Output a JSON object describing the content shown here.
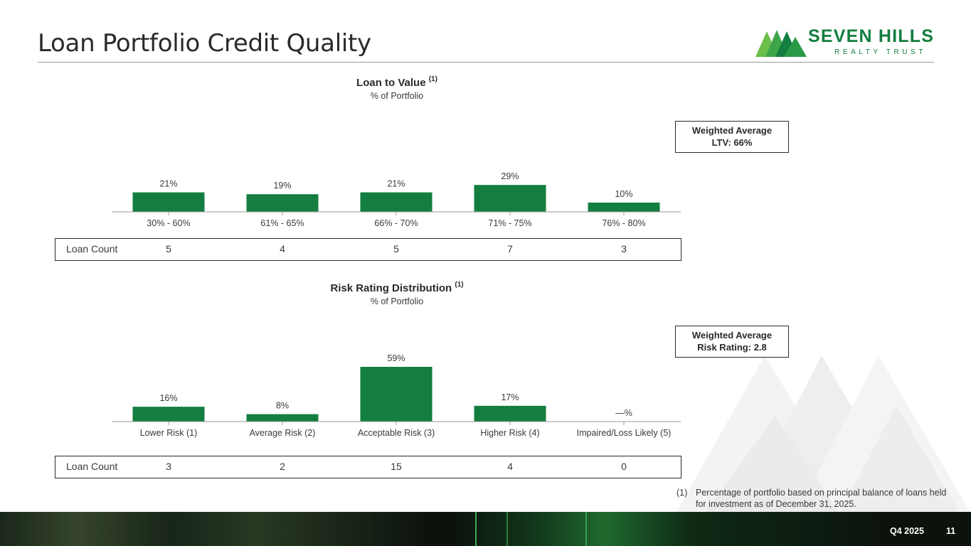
{
  "page_title": "Loan Portfolio Credit Quality",
  "logo": {
    "name": "SEVEN HILLS",
    "subtitle": "REALTY TRUST"
  },
  "colors": {
    "bar": "#137e3f",
    "brand": "#137e3f",
    "text": "#3a3a3a"
  },
  "ltv_section": {
    "title": "Loan to Value",
    "footnote_ref": "(1)",
    "subtitle": "% of Portfolio"
  },
  "ltv_callout": {
    "line1": "Weighted Average",
    "line2": "LTV: 66%"
  },
  "ltv_counts": {
    "label": "Loan Count",
    "values": [
      "5",
      "4",
      "5",
      "7",
      "3"
    ]
  },
  "risk_section": {
    "title": "Risk Rating Distribution",
    "footnote_ref": "(1)",
    "subtitle": "% of Portfolio"
  },
  "risk_callout": {
    "line1": "Weighted Average",
    "line2": "Risk Rating: 2.8"
  },
  "risk_counts": {
    "label": "Loan Count",
    "values": [
      "3",
      "2",
      "15",
      "4",
      "0"
    ]
  },
  "chart_data": [
    {
      "type": "bar",
      "title": "Loan to Value",
      "subtitle": "% of Portfolio",
      "categories": [
        "30% - 60%",
        "61% - 65%",
        "66% - 70%",
        "71% - 75%",
        "76% - 80%"
      ],
      "values": [
        21,
        19,
        21,
        29,
        10
      ],
      "data_labels": [
        "21%",
        "19%",
        "21%",
        "29%",
        "10%"
      ],
      "ylim": [
        0,
        59
      ],
      "grid": false
    },
    {
      "type": "bar",
      "title": "Risk Rating Distribution",
      "subtitle": "% of Portfolio",
      "categories": [
        "Lower Risk (1)",
        "Average Risk (2)",
        "Acceptable Risk (3)",
        "Higher Risk (4)",
        "Impaired/Loss Likely (5)"
      ],
      "values": [
        16,
        8,
        59,
        17,
        0
      ],
      "data_labels": [
        "16%",
        "8%",
        "59%",
        "17%",
        "—%"
      ],
      "ylim": [
        0,
        59
      ],
      "grid": false
    }
  ],
  "footnote": {
    "mark": "(1)",
    "text": "Percentage of portfolio based on principal balance of loans held for investment as of December 31, 2025."
  },
  "footer": {
    "quarter": "Q4 2025",
    "page": "11"
  }
}
